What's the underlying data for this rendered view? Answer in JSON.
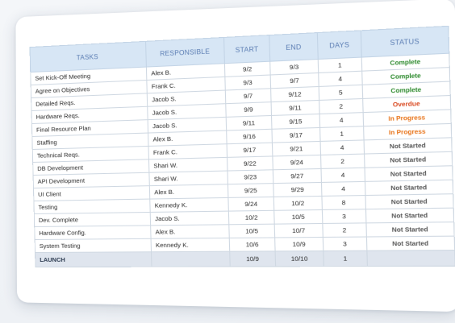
{
  "headers": {
    "tasks": "TASKS",
    "responsible": "RESPONSIBLE",
    "start": "START",
    "end": "END",
    "days": "DAYS",
    "status": "STATUS"
  },
  "colors": {
    "complete": "#2e8b2e",
    "overdue": "#d9481f",
    "in_progress": "#e8741a",
    "not_started": "#555555",
    "header_bg": "#d7e6f5",
    "header_text": "#5b7db3"
  },
  "rows": [
    {
      "task": "Set Kick-Off Meeting",
      "responsible": "Alex B.",
      "start": "9/2",
      "end": "9/3",
      "days": "1",
      "status": "Complete",
      "status_key": "complete"
    },
    {
      "task": "Agree on Objectives",
      "responsible": "Frank C.",
      "start": "9/3",
      "end": "9/7",
      "days": "4",
      "status": "Complete",
      "status_key": "complete"
    },
    {
      "task": "Detailed Reqs.",
      "responsible": "Jacob S.",
      "start": "9/7",
      "end": "9/12",
      "days": "5",
      "status": "Complete",
      "status_key": "complete"
    },
    {
      "task": "Hardware Reqs.",
      "responsible": "Jacob S.",
      "start": "9/9",
      "end": "9/11",
      "days": "2",
      "status": "Overdue",
      "status_key": "overdue"
    },
    {
      "task": "Final Resource Plan",
      "responsible": "Jacob S.",
      "start": "9/11",
      "end": "9/15",
      "days": "4",
      "status": "In Progress",
      "status_key": "in_progress"
    },
    {
      "task": "Staffing",
      "responsible": "Alex B.",
      "start": "9/16",
      "end": "9/17",
      "days": "1",
      "status": "In Progress",
      "status_key": "in_progress"
    },
    {
      "task": "Technical Reqs.",
      "responsible": "Frank C.",
      "start": "9/17",
      "end": "9/21",
      "days": "4",
      "status": "Not Started",
      "status_key": "not_started"
    },
    {
      "task": "DB Development",
      "responsible": "Shari W.",
      "start": "9/22",
      "end": "9/24",
      "days": "2",
      "status": "Not Started",
      "status_key": "not_started"
    },
    {
      "task": "API Development",
      "responsible": "Shari W.",
      "start": "9/23",
      "end": "9/27",
      "days": "4",
      "status": "Not Started",
      "status_key": "not_started"
    },
    {
      "task": "UI Client",
      "responsible": "Alex B.",
      "start": "9/25",
      "end": "9/29",
      "days": "4",
      "status": "Not Started",
      "status_key": "not_started"
    },
    {
      "task": "Testing",
      "responsible": "Kennedy K.",
      "start": "9/24",
      "end": "10/2",
      "days": "8",
      "status": "Not Started",
      "status_key": "not_started"
    },
    {
      "task": "Dev. Complete",
      "responsible": "Jacob S.",
      "start": "10/2",
      "end": "10/5",
      "days": "3",
      "status": "Not Started",
      "status_key": "not_started"
    },
    {
      "task": "Hardware Config.",
      "responsible": "Alex B.",
      "start": "10/5",
      "end": "10/7",
      "days": "2",
      "status": "Not Started",
      "status_key": "not_started"
    },
    {
      "task": "System Testing",
      "responsible": "Kennedy K.",
      "start": "10/6",
      "end": "10/9",
      "days": "3",
      "status": "Not Started",
      "status_key": "not_started"
    }
  ],
  "launch": {
    "task": "LAUNCH",
    "responsible": "",
    "start": "10/9",
    "end": "10/10",
    "days": "1",
    "status": ""
  }
}
